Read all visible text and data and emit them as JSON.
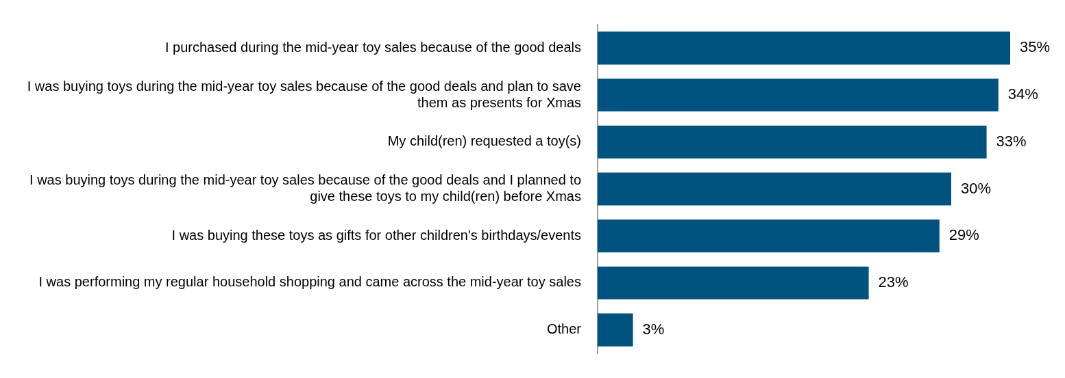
{
  "chart_data": {
    "type": "bar",
    "orientation": "horizontal",
    "categories": [
      "I purchased during the mid-year toy sales because of the good deals",
      "I was buying toys during the mid-year toy sales because of the good deals and plan to save them as presents for Xmas",
      "My child(ren) requested a toy(s)",
      "I was buying toys during the mid-year toy sales because of the good deals and I planned to give these toys to my child(ren) before Xmas",
      "I was buying these toys as gifts for other children's birthdays/events",
      "I was performing my regular household shopping and came across the mid-year toy sales",
      "Other"
    ],
    "values": [
      35,
      34,
      33,
      30,
      29,
      23,
      3
    ],
    "value_labels": [
      "35%",
      "34%",
      "33%",
      "30%",
      "29%",
      "23%",
      "3%"
    ],
    "color": "#00527f",
    "tick_labels": "y",
    "legend": false
  }
}
